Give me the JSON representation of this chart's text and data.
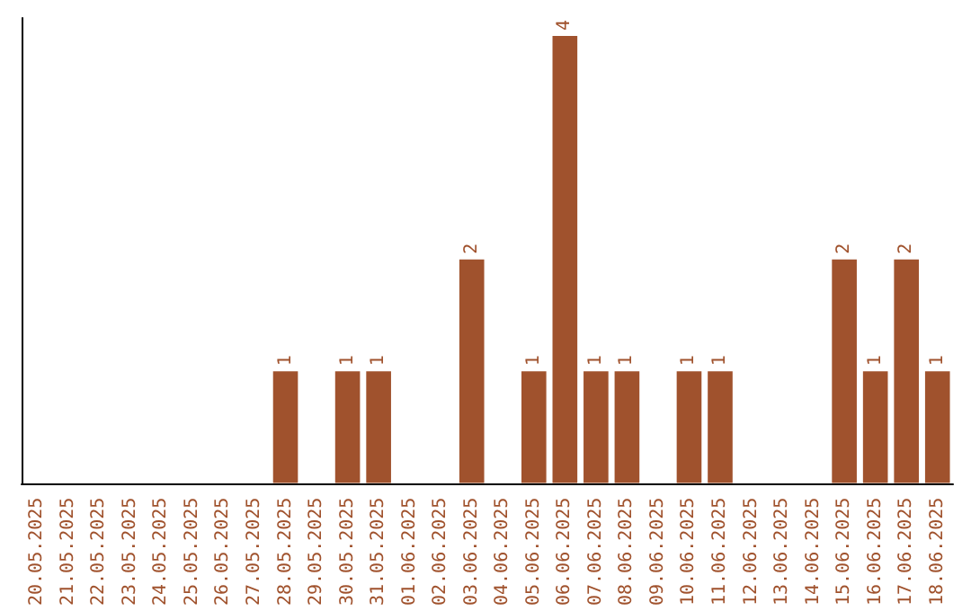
{
  "chart_data": {
    "type": "bar",
    "categories": [
      "20.05.2025",
      "21.05.2025",
      "22.05.2025",
      "23.05.2025",
      "24.05.2025",
      "25.05.2025",
      "26.05.2025",
      "27.05.2025",
      "28.05.2025",
      "29.05.2025",
      "30.05.2025",
      "31.05.2025",
      "01.06.2025",
      "02.06.2025",
      "03.06.2025",
      "04.06.2025",
      "05.06.2025",
      "06.06.2025",
      "07.06.2025",
      "08.06.2025",
      "09.06.2025",
      "10.06.2025",
      "11.06.2025",
      "12.06.2025",
      "13.06.2025",
      "14.06.2025",
      "15.06.2025",
      "16.06.2025",
      "17.06.2025",
      "18.06.2025"
    ],
    "values": [
      0,
      0,
      0,
      0,
      0,
      0,
      0,
      0,
      1,
      0,
      1,
      1,
      0,
      0,
      2,
      0,
      1,
      4,
      1,
      1,
      0,
      1,
      1,
      0,
      0,
      0,
      2,
      1,
      2,
      1
    ],
    "value_labels": [
      null,
      null,
      null,
      null,
      null,
      null,
      null,
      null,
      "1",
      null,
      "1",
      "1",
      null,
      null,
      "2",
      null,
      "1",
      "4",
      "1",
      "1",
      null,
      "1",
      "1",
      null,
      null,
      null,
      "2",
      "1",
      "2",
      "1"
    ],
    "color": "#a0522d",
    "tick_labels": "x"
  }
}
